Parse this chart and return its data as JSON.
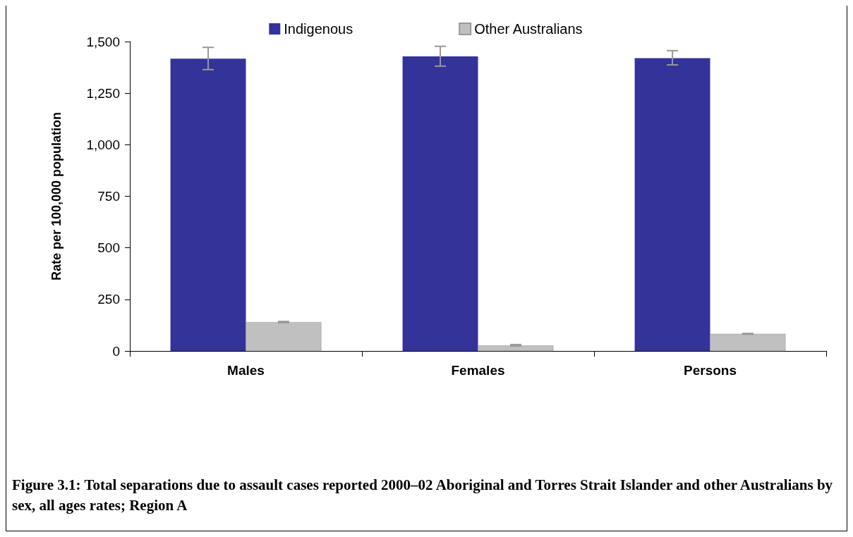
{
  "chart_data": {
    "type": "bar",
    "categories": [
      "Males",
      "Females",
      "Persons"
    ],
    "series": [
      {
        "name": "Indigenous",
        "color": "#333399",
        "values": [
          1417,
          1428,
          1420
        ],
        "errors": [
          [
            1364,
            1472
          ],
          [
            1381,
            1477
          ],
          [
            1387,
            1456
          ]
        ]
      },
      {
        "name": "Other Australians",
        "color": "#c0c0c0",
        "values": [
          140,
          27,
          83
        ],
        "errors": [
          [
            137,
            143
          ],
          [
            24,
            31
          ],
          [
            81,
            85
          ]
        ]
      }
    ],
    "ylabel": "Rate per 100,000 population",
    "ylim": [
      0,
      1500
    ],
    "yticks": [
      {
        "value": 0,
        "label": "0"
      },
      {
        "value": 250,
        "label": "250"
      },
      {
        "value": 500,
        "label": "500"
      },
      {
        "value": 750,
        "label": "750"
      },
      {
        "value": 1000,
        "label": "1,000"
      },
      {
        "value": 1250,
        "label": "1,250"
      },
      {
        "value": 1500,
        "label": "1,500"
      }
    ],
    "grid": false,
    "legend": "top",
    "annotations": [
      "Figure 3.1: Total separations due to assault cases reported 2000–02 Aboriginal and Torres Strait Islander and other Australians by sex, all ages rates; Region A"
    ]
  }
}
